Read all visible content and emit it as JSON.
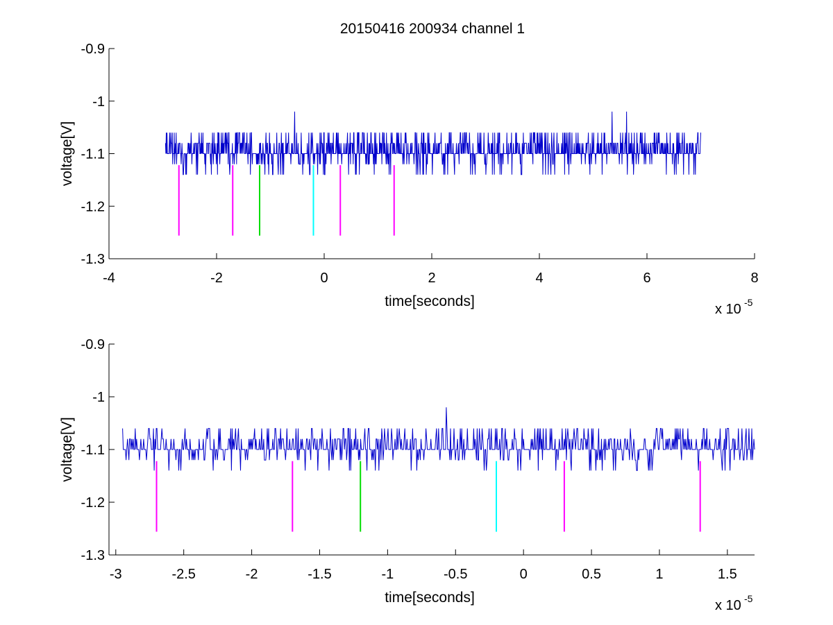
{
  "figure": {
    "title": "20150416 200934 channel 1"
  },
  "chart_data": [
    {
      "type": "line",
      "title": "20150416 200934 channel 1",
      "xlabel": "time[seconds]",
      "ylabel": "voltage[V]",
      "x_multiplier_label": "x 10",
      "x_multiplier_exponent": "-5",
      "xlim": [
        -4,
        8
      ],
      "ylim": [
        -1.3,
        -0.9
      ],
      "xticks": [
        -4,
        -2,
        0,
        2,
        4,
        6,
        8
      ],
      "xtick_labels": [
        "-4",
        "-2",
        "0",
        "2",
        "4",
        "6",
        "8"
      ],
      "yticks": [
        -1.3,
        -1.2,
        -1.1,
        -1,
        -0.9
      ],
      "ytick_labels": [
        "-1.3",
        "-1.2",
        "-1.1",
        "-1",
        "-0.9"
      ],
      "grid": false,
      "signal": {
        "color": "#0000cc",
        "x_range": [
          -2.95,
          7.0
        ],
        "baseline": -1.1,
        "levels": [
          -1.14,
          -1.12,
          -1.1,
          -1.08,
          -1.06
        ],
        "spikes": [
          {
            "x": -0.55,
            "y": -1.02
          },
          {
            "x": 5.35,
            "y": -1.02
          },
          {
            "x": 5.62,
            "y": -1.02
          }
        ]
      },
      "markers": [
        {
          "x": -2.7,
          "y_top": -1.122,
          "y_bottom": -1.256,
          "color": "#ff00ff"
        },
        {
          "x": -1.7,
          "y_top": -1.122,
          "y_bottom": -1.256,
          "color": "#ff00ff"
        },
        {
          "x": -1.2,
          "y_top": -1.122,
          "y_bottom": -1.256,
          "color": "#00dd00"
        },
        {
          "x": -0.2,
          "y_top": -1.122,
          "y_bottom": -1.256,
          "color": "#00ffff"
        },
        {
          "x": 0.3,
          "y_top": -1.122,
          "y_bottom": -1.256,
          "color": "#ff00ff"
        },
        {
          "x": 1.3,
          "y_top": -1.122,
          "y_bottom": -1.256,
          "color": "#ff00ff"
        }
      ]
    },
    {
      "type": "line",
      "title": "",
      "xlabel": "time[seconds]",
      "ylabel": "voltage[V]",
      "x_multiplier_label": "x 10",
      "x_multiplier_exponent": "-5",
      "xlim": [
        -3.05,
        1.7
      ],
      "ylim": [
        -1.3,
        -0.9
      ],
      "xticks": [
        -3,
        -2.5,
        -2,
        -1.5,
        -1,
        -0.5,
        0,
        0.5,
        1,
        1.5
      ],
      "xtick_labels": [
        "-3",
        "-2.5",
        "-2",
        "-1.5",
        "-1",
        "-0.5",
        "0",
        "0.5",
        "1",
        "1.5"
      ],
      "yticks": [
        -1.3,
        -1.2,
        -1.1,
        -1,
        -0.9
      ],
      "ytick_labels": [
        "-1.3",
        "-1.2",
        "-1.1",
        "-1",
        "-0.9"
      ],
      "grid": false,
      "signal": {
        "color": "#0000cc",
        "x_range": [
          -2.95,
          1.7
        ],
        "baseline": -1.1,
        "levels": [
          -1.14,
          -1.12,
          -1.1,
          -1.08,
          -1.06
        ],
        "spikes": [
          {
            "x": -0.57,
            "y": -1.02
          }
        ]
      },
      "markers": [
        {
          "x": -2.7,
          "y_top": -1.122,
          "y_bottom": -1.256,
          "color": "#ff00ff"
        },
        {
          "x": -1.7,
          "y_top": -1.122,
          "y_bottom": -1.256,
          "color": "#ff00ff"
        },
        {
          "x": -1.2,
          "y_top": -1.122,
          "y_bottom": -1.256,
          "color": "#00dd00"
        },
        {
          "x": -0.2,
          "y_top": -1.122,
          "y_bottom": -1.256,
          "color": "#00ffff"
        },
        {
          "x": 0.3,
          "y_top": -1.122,
          "y_bottom": -1.256,
          "color": "#ff00ff"
        },
        {
          "x": 1.3,
          "y_top": -1.122,
          "y_bottom": -1.256,
          "color": "#ff00ff"
        }
      ]
    }
  ]
}
